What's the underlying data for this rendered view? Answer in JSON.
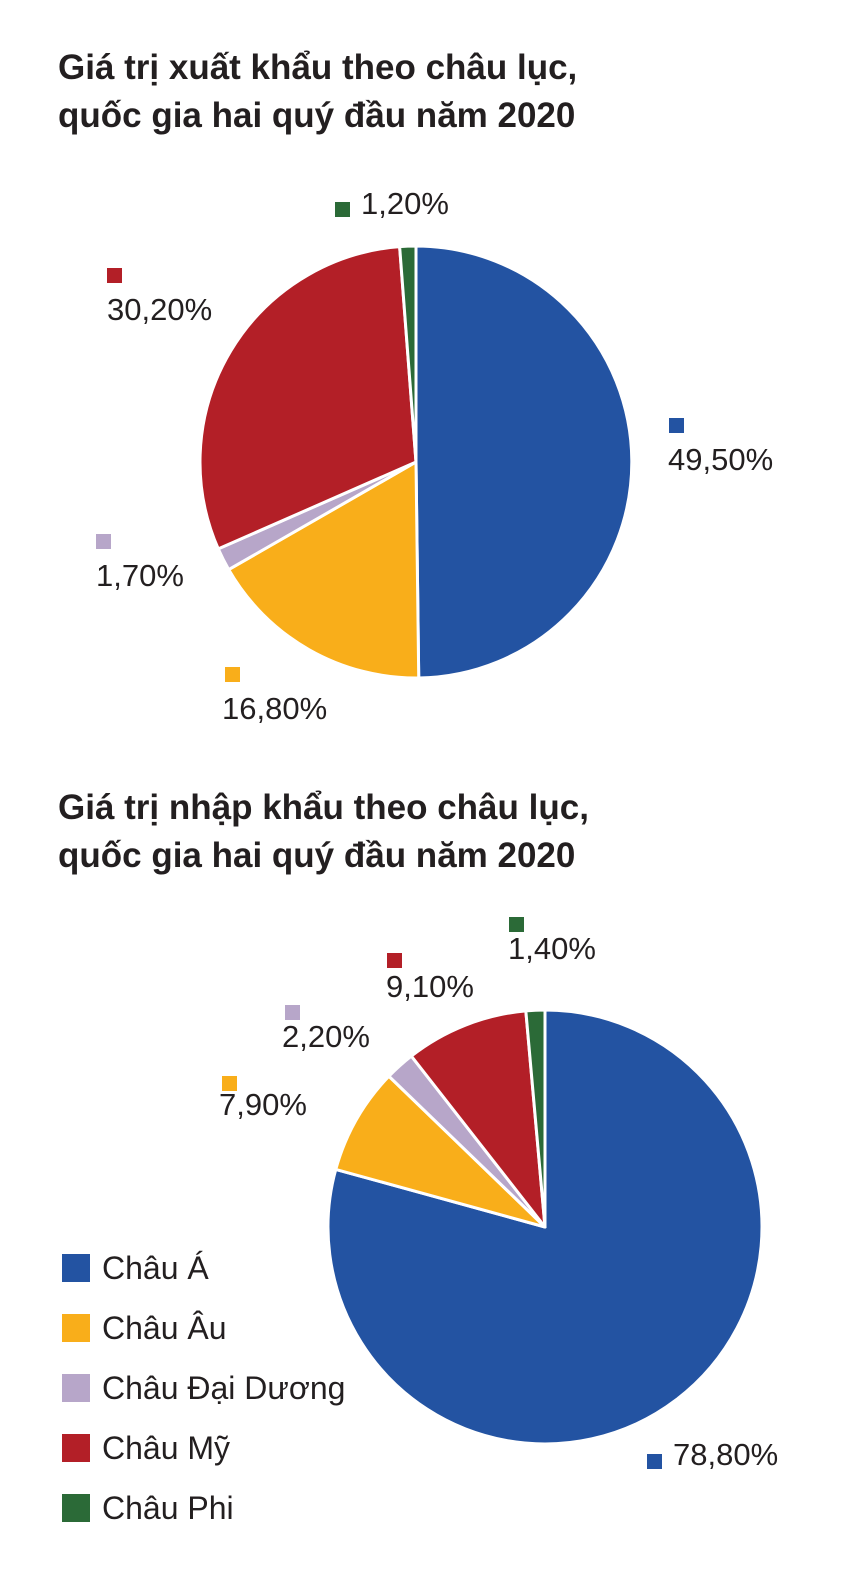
{
  "chart_data": [
    {
      "type": "pie",
      "title": "Giá trị xuất khẩu theo châu lục, quốc gia hai quý đầu năm 2020",
      "title_lines": [
        "Giá trị xuất khẩu theo châu lục,",
        "quốc gia hai quý đầu năm 2020"
      ],
      "categories": [
        "Châu Á",
        "Châu Âu",
        "Châu Đại Dương",
        "Châu Mỹ",
        "Châu Phi"
      ],
      "values": [
        49.5,
        16.8,
        1.7,
        30.2,
        1.2
      ],
      "labels": [
        "49,50%",
        "16,80%",
        "1,70%",
        "30,20%",
        "1,20%"
      ],
      "colors": [
        "#2353a2",
        "#f9ae1a",
        "#b7a6c9",
        "#b31f27",
        "#2b6a37"
      ]
    },
    {
      "type": "pie",
      "title": "Giá trị nhập khẩu theo châu lục, quốc gia hai quý đầu năm 2020",
      "title_lines": [
        "Giá trị nhập khẩu theo châu lục,",
        "quốc gia hai quý đầu năm 2020"
      ],
      "categories": [
        "Châu Á",
        "Châu Âu",
        "Châu Đại Dương",
        "Châu Mỹ",
        "Châu Phi"
      ],
      "values": [
        78.8,
        7.9,
        2.2,
        9.1,
        1.4
      ],
      "labels": [
        "78,80%",
        "7,90%",
        "2,20%",
        "9,10%",
        "1,40%"
      ],
      "colors": [
        "#2353a2",
        "#f9ae1a",
        "#b7a6c9",
        "#b31f27",
        "#2b6a37"
      ]
    }
  ],
  "legend": {
    "placement": "bottom-left",
    "items": [
      {
        "label": "Châu Á",
        "color": "#2353a2"
      },
      {
        "label": "Châu Âu",
        "color": "#f9ae1a"
      },
      {
        "label": "Châu Đại Dương",
        "color": "#b7a6c9"
      },
      {
        "label": "Châu Mỹ",
        "color": "#b31f27"
      },
      {
        "label": "Châu Phi",
        "color": "#2b6a37"
      }
    ]
  }
}
